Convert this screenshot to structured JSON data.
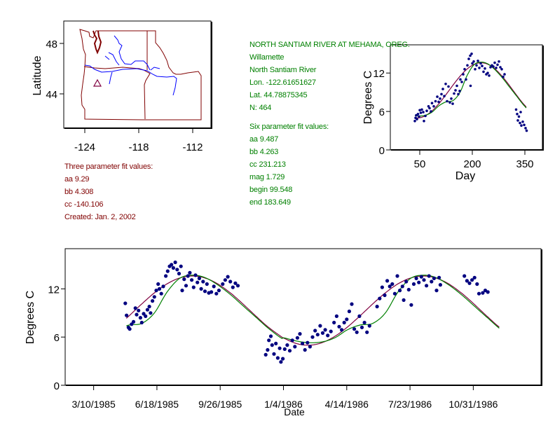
{
  "station": {
    "title": "NORTH SANTIAM RIVER AT MEHAMA, OREG.",
    "basin": "Willamette",
    "river": "North Santiam River",
    "lon": "Lon. -122.61651627",
    "lat": "Lat. 44.78875345",
    "n": "N: 464"
  },
  "six_param": {
    "heading": "Six parameter fit values:",
    "aa": "aa 9.487",
    "bb": "bb 4.263",
    "cc": "cc 231.213",
    "mag": "mag 1.729",
    "begin": "begin 99.548",
    "end": "end 183.649"
  },
  "three_param": {
    "heading": "Three parameter fit values:",
    "aa": "aa 9.29",
    "bb": "bb 4.308",
    "cc": "cc -140.106",
    "created": "Created:   Jan. 2, 2002"
  },
  "colors": {
    "points": "#000080",
    "three_fit": "#800040",
    "six_fit": "#008000",
    "state_lines": "#800000",
    "rivers": "#0000ff",
    "site": "#800040"
  },
  "chart_data": [
    {
      "type": "map",
      "ylabel": "Latitude",
      "xticks": [
        -124,
        -118,
        -112
      ],
      "yticks": [
        48,
        44
      ],
      "site": {
        "lon": -122.61651627,
        "lat": 44.78875345,
        "marker": "triangle"
      }
    },
    {
      "type": "scatter",
      "xlabel": "Day",
      "ylabel": "Degrees C",
      "xticks": [
        50,
        200,
        350
      ],
      "yticks": [
        0,
        6,
        12
      ],
      "xlim": [
        -34,
        400
      ],
      "ylim": [
        0,
        16.4
      ],
      "points": [
        [
          36,
          4.5
        ],
        [
          38,
          5.0
        ],
        [
          40,
          5.4
        ],
        [
          42,
          4.8
        ],
        [
          45,
          5.6
        ],
        [
          48,
          5.2
        ],
        [
          50,
          6.2
        ],
        [
          53,
          5.8
        ],
        [
          56,
          6.3
        ],
        [
          60,
          5.9
        ],
        [
          62,
          4.5
        ],
        [
          66,
          5.3
        ],
        [
          70,
          6.1
        ],
        [
          75,
          6.8
        ],
        [
          78,
          6.5
        ],
        [
          82,
          6.0
        ],
        [
          85,
          7.3
        ],
        [
          90,
          6.8
        ],
        [
          95,
          7.6
        ],
        [
          100,
          8.3
        ],
        [
          104,
          7.5
        ],
        [
          108,
          8.0
        ],
        [
          112,
          8.7
        ],
        [
          116,
          9.5
        ],
        [
          120,
          8.4
        ],
        [
          124,
          10.3
        ],
        [
          128,
          7.6
        ],
        [
          132,
          9.9
        ],
        [
          136,
          7.4
        ],
        [
          140,
          8.0
        ],
        [
          144,
          7.2
        ],
        [
          148,
          8.8
        ],
        [
          152,
          9.3
        ],
        [
          156,
          10.0
        ],
        [
          160,
          8.7
        ],
        [
          164,
          9.2
        ],
        [
          166,
          11.0
        ],
        [
          170,
          10.6
        ],
        [
          174,
          11.8
        ],
        [
          178,
          12.6
        ],
        [
          182,
          11.0
        ],
        [
          186,
          13.2
        ],
        [
          190,
          14.2
        ],
        [
          194,
          14.7
        ],
        [
          198,
          15.0
        ],
        [
          200,
          13.5
        ],
        [
          195,
          10.0
        ],
        [
          204,
          13.8
        ],
        [
          208,
          12.6
        ],
        [
          212,
          13.2
        ],
        [
          216,
          13.9
        ],
        [
          220,
          12.8
        ],
        [
          224,
          13.5
        ],
        [
          228,
          13.1
        ],
        [
          232,
          12.2
        ],
        [
          236,
          12.7
        ],
        [
          240,
          11.8
        ],
        [
          244,
          12.0
        ],
        [
          248,
          11.6
        ],
        [
          252,
          12.9
        ],
        [
          256,
          13.2
        ],
        [
          260,
          13.0
        ],
        [
          264,
          13.6
        ],
        [
          268,
          12.8
        ],
        [
          272,
          13.3
        ],
        [
          276,
          13.8
        ],
        [
          280,
          12.9
        ],
        [
          284,
          12.6
        ],
        [
          288,
          11.4
        ],
        [
          292,
          11.8
        ],
        [
          325,
          6.3
        ],
        [
          328,
          5.6
        ],
        [
          330,
          4.6
        ],
        [
          333,
          5.2
        ],
        [
          336,
          4.2
        ],
        [
          338,
          5.9
        ],
        [
          340,
          3.8
        ],
        [
          344,
          4.4
        ],
        [
          348,
          3.9
        ],
        [
          352,
          3.4
        ],
        [
          355,
          3.0
        ]
      ],
      "fit_range": [
        35,
        355
      ],
      "series": [
        {
          "name": "three parameter fit",
          "x": [
            5,
            25,
            45,
            65,
            85,
            105,
            125,
            145,
            165,
            185,
            205,
            225,
            245,
            265,
            285,
            305,
            325,
            345,
            365
          ],
          "y": [
            5.85,
            5.18,
            4.99,
            5.3,
            6.08,
            7.24,
            8.64,
            10.12,
            11.5,
            12.62,
            13.35,
            13.6,
            13.35,
            12.62,
            11.5,
            10.12,
            8.64,
            7.24,
            6.08
          ]
        },
        {
          "name": "six parameter fit",
          "x": [
            5,
            25,
            45,
            65,
            85,
            105,
            125,
            145,
            165,
            185,
            205,
            225,
            245,
            265,
            285,
            305,
            325,
            345,
            365
          ],
          "y": [
            5.9,
            5.5,
            5.3,
            5.4,
            5.9,
            6.9,
            7.5,
            7.7,
            9.0,
            11.6,
            13.3,
            13.7,
            13.4,
            12.5,
            11.3,
            9.9,
            8.5,
            7.1,
            5.9
          ]
        }
      ]
    },
    {
      "type": "scatter",
      "xlabel": "Date",
      "ylabel": "Degrees C",
      "x_unit": "days since 3/10/1985",
      "start_day_of_year": 69,
      "xticks": [
        0,
        100,
        200,
        300,
        400,
        500,
        600
      ],
      "xtick_labels": [
        "3/10/1985",
        "6/18/1985",
        "9/26/1985",
        "1/4/1986",
        "4/14/1986",
        "7/23/1986",
        "10/31/1986"
      ],
      "yticks": [
        0,
        6,
        12
      ],
      "xlim": [
        -45,
        707
      ],
      "ylim": [
        0,
        17
      ],
      "fit_range": [
        51,
        642
      ],
      "points": [
        [
          50,
          10.2
        ],
        [
          52,
          8.7
        ],
        [
          55,
          7.2
        ],
        [
          57,
          7.0
        ],
        [
          60,
          7.6
        ],
        [
          63,
          7.9
        ],
        [
          66,
          9.6
        ],
        [
          68,
          8.8
        ],
        [
          71,
          9.3
        ],
        [
          74,
          8.4
        ],
        [
          76,
          7.8
        ],
        [
          79,
          8.9
        ],
        [
          82,
          8.6
        ],
        [
          85,
          9.4
        ],
        [
          88,
          9.8
        ],
        [
          90,
          9.0
        ],
        [
          93,
          10.5
        ],
        [
          96,
          11.0
        ],
        [
          99,
          11.8
        ],
        [
          102,
          12.6
        ],
        [
          104,
          12.0
        ],
        [
          107,
          11.4
        ],
        [
          110,
          12.3
        ],
        [
          114,
          13.6
        ],
        [
          117,
          14.2
        ],
        [
          120,
          14.8
        ],
        [
          123,
          15.0
        ],
        [
          126,
          14.6
        ],
        [
          129,
          15.3
        ],
        [
          132,
          14.4
        ],
        [
          135,
          13.9
        ],
        [
          138,
          14.8
        ],
        [
          140,
          11.8
        ],
        [
          143,
          13.2
        ],
        [
          146,
          12.4
        ],
        [
          149,
          13.6
        ],
        [
          152,
          14.0
        ],
        [
          155,
          13.1
        ],
        [
          158,
          12.2
        ],
        [
          161,
          13.7
        ],
        [
          164,
          12.8
        ],
        [
          167,
          13.3
        ],
        [
          170,
          12.0
        ],
        [
          173,
          12.9
        ],
        [
          176,
          11.7
        ],
        [
          179,
          12.6
        ],
        [
          182,
          11.5
        ],
        [
          186,
          11.6
        ],
        [
          190,
          12.3
        ],
        [
          194,
          11.4
        ],
        [
          198,
          11.8
        ],
        [
          204,
          12.6
        ],
        [
          208,
          13.1
        ],
        [
          212,
          13.5
        ],
        [
          216,
          12.9
        ],
        [
          220,
          12.2
        ],
        [
          224,
          12.7
        ],
        [
          228,
          12.4
        ],
        [
          272,
          3.8
        ],
        [
          275,
          4.4
        ],
        [
          277,
          5.6
        ],
        [
          280,
          6.1
        ],
        [
          282,
          5.0
        ],
        [
          285,
          3.9
        ],
        [
          288,
          5.2
        ],
        [
          291,
          3.4
        ],
        [
          294,
          4.6
        ],
        [
          296,
          2.9
        ],
        [
          299,
          3.3
        ],
        [
          302,
          4.5
        ],
        [
          306,
          5.0
        ],
        [
          310,
          4.3
        ],
        [
          314,
          5.6
        ],
        [
          318,
          4.8
        ],
        [
          322,
          5.9
        ],
        [
          326,
          6.4
        ],
        [
          330,
          5.2
        ],
        [
          334,
          4.4
        ],
        [
          338,
          5.3
        ],
        [
          342,
          4.8
        ],
        [
          346,
          6.0
        ],
        [
          350,
          6.8
        ],
        [
          354,
          6.3
        ],
        [
          358,
          7.4
        ],
        [
          362,
          6.5
        ],
        [
          366,
          6.9
        ],
        [
          370,
          6.2
        ],
        [
          375,
          6.7
        ],
        [
          380,
          7.8
        ],
        [
          384,
          8.6
        ],
        [
          388,
          7.3
        ],
        [
          392,
          6.9
        ],
        [
          396,
          7.8
        ],
        [
          400,
          8.2
        ],
        [
          404,
          9.2
        ],
        [
          408,
          10.1
        ],
        [
          412,
          7.0
        ],
        [
          416,
          6.6
        ],
        [
          420,
          8.6
        ],
        [
          424,
          7.2
        ],
        [
          428,
          7.8
        ],
        [
          432,
          6.6
        ],
        [
          436,
          7.4
        ],
        [
          448,
          9.8
        ],
        [
          452,
          10.8
        ],
        [
          456,
          12.2
        ],
        [
          460,
          11.2
        ],
        [
          464,
          13.0
        ],
        [
          468,
          12.3
        ],
        [
          472,
          12.6
        ],
        [
          476,
          11.4
        ],
        [
          480,
          13.6
        ],
        [
          484,
          11.8
        ],
        [
          488,
          12.3
        ],
        [
          490,
          10.6
        ],
        [
          494,
          12.9
        ],
        [
          498,
          11.9
        ],
        [
          502,
          10.0
        ],
        [
          506,
          12.6
        ],
        [
          510,
          13.3
        ],
        [
          514,
          12.8
        ],
        [
          518,
          13.5
        ],
        [
          522,
          13.1
        ],
        [
          526,
          12.4
        ],
        [
          530,
          13.6
        ],
        [
          534,
          12.9
        ],
        [
          538,
          13.3
        ],
        [
          542,
          11.8
        ],
        [
          546,
          13.4
        ],
        [
          548,
          12.5
        ],
        [
          586,
          13.6
        ],
        [
          590,
          13.0
        ],
        [
          594,
          12.7
        ],
        [
          598,
          13.1
        ],
        [
          602,
          13.4
        ],
        [
          606,
          12.6
        ],
        [
          609,
          11.4
        ],
        [
          615,
          11.5
        ],
        [
          619,
          11.8
        ],
        [
          623,
          11.6
        ]
      ],
      "series": [
        {
          "name": "three parameter fit",
          "x": [
            5,
            25,
            45,
            65,
            85,
            105,
            125,
            145,
            165,
            185,
            205,
            225,
            245,
            265,
            285,
            305,
            325,
            345,
            365
          ],
          "y": [
            5.85,
            5.18,
            4.99,
            5.3,
            6.08,
            7.24,
            8.64,
            10.12,
            11.5,
            12.62,
            13.35,
            13.6,
            13.35,
            12.62,
            11.5,
            10.12,
            8.64,
            7.24,
            6.08
          ]
        },
        {
          "name": "six parameter fit",
          "x": [
            5,
            25,
            45,
            65,
            85,
            105,
            125,
            145,
            165,
            185,
            205,
            225,
            245,
            265,
            285,
            305,
            325,
            345,
            365
          ],
          "y": [
            5.9,
            5.5,
            5.3,
            5.4,
            5.9,
            6.9,
            7.5,
            7.7,
            9.0,
            11.6,
            13.3,
            13.7,
            13.4,
            12.5,
            11.3,
            9.9,
            8.5,
            7.1,
            5.9
          ]
        }
      ]
    }
  ]
}
